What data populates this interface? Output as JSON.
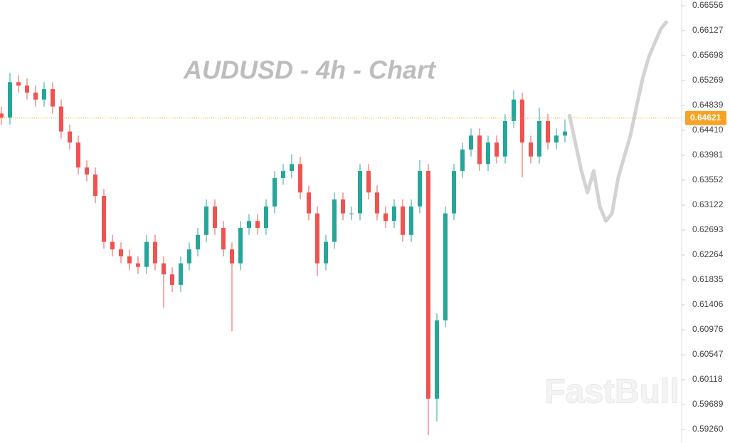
{
  "chart_data": {
    "type": "candlestick",
    "title": "AUDUSD - 4h - Chart",
    "watermark": "FastBull",
    "up_color": "#26a69a",
    "down_color": "#ef5350",
    "open": [
      0.647,
      0.6463,
      0.6524,
      0.6518,
      0.6506,
      0.6494,
      0.6512,
      0.6482,
      0.6439,
      0.642,
      0.6377,
      0.6365,
      0.6328,
      0.6249,
      0.6236,
      0.6224,
      0.6212,
      0.6206,
      0.6249,
      0.6212,
      0.6193,
      0.6175,
      0.6212,
      0.6236,
      0.6261,
      0.631,
      0.6273,
      0.6236,
      0.6212,
      0.6273,
      0.6285,
      0.6273,
      0.631,
      0.6359,
      0.6371,
      0.6383,
      0.6334,
      0.6298,
      0.6212,
      0.6249,
      0.6322,
      0.6298,
      0.6298,
      0.6371,
      0.6334,
      0.6298,
      0.6285,
      0.631,
      0.6261,
      0.631,
      0.6371,
      0.5979,
      0.6114,
      0.6298,
      0.6371,
      0.6408,
      0.6432,
      0.6383,
      0.642,
      0.6396,
      0.6457,
      0.6494,
      0.642,
      0.6396,
      0.6457,
      0.642,
      0.6432
    ],
    "high": [
      0.6482,
      0.654,
      0.6536,
      0.653,
      0.6518,
      0.6524,
      0.6524,
      0.6494,
      0.6451,
      0.6432,
      0.6389,
      0.6377,
      0.634,
      0.6261,
      0.6248,
      0.6236,
      0.6224,
      0.6261,
      0.6261,
      0.6224,
      0.6205,
      0.6224,
      0.6248,
      0.6273,
      0.6322,
      0.6322,
      0.6285,
      0.6248,
      0.6285,
      0.6297,
      0.6297,
      0.6322,
      0.6371,
      0.6383,
      0.64,
      0.6395,
      0.6346,
      0.631,
      0.6261,
      0.6334,
      0.6334,
      0.631,
      0.6383,
      0.6383,
      0.6346,
      0.631,
      0.6322,
      0.6322,
      0.6322,
      0.639,
      0.6383,
      0.6126,
      0.631,
      0.6383,
      0.642,
      0.6444,
      0.6444,
      0.6432,
      0.6432,
      0.6469,
      0.651,
      0.6506,
      0.6432,
      0.648,
      0.6469,
      0.6444,
      0.646
    ],
    "low": [
      0.6451,
      0.6451,
      0.6506,
      0.6494,
      0.6482,
      0.6482,
      0.647,
      0.6427,
      0.6408,
      0.6365,
      0.6353,
      0.6316,
      0.6237,
      0.6224,
      0.6212,
      0.62,
      0.6194,
      0.6194,
      0.62,
      0.6135,
      0.6163,
      0.6163,
      0.62,
      0.6224,
      0.6249,
      0.6261,
      0.6224,
      0.6095,
      0.62,
      0.6261,
      0.6261,
      0.6261,
      0.6298,
      0.6347,
      0.6359,
      0.6322,
      0.6286,
      0.619,
      0.62,
      0.6237,
      0.6286,
      0.6286,
      0.6286,
      0.6322,
      0.6286,
      0.6273,
      0.6273,
      0.6249,
      0.6249,
      0.6298,
      0.5916,
      0.594,
      0.6102,
      0.6286,
      0.6359,
      0.6396,
      0.6371,
      0.6371,
      0.6384,
      0.6384,
      0.6445,
      0.636,
      0.6384,
      0.6384,
      0.6408,
      0.6408,
      0.642
    ],
    "close": [
      0.6463,
      0.6524,
      0.6518,
      0.6506,
      0.6494,
      0.6512,
      0.6482,
      0.6439,
      0.642,
      0.6377,
      0.6365,
      0.6328,
      0.6249,
      0.6236,
      0.6224,
      0.6212,
      0.6206,
      0.6249,
      0.6212,
      0.6193,
      0.6175,
      0.6212,
      0.6236,
      0.6261,
      0.631,
      0.6273,
      0.6236,
      0.6212,
      0.6273,
      0.6285,
      0.6273,
      0.631,
      0.6359,
      0.6371,
      0.6383,
      0.6334,
      0.6298,
      0.6212,
      0.6249,
      0.6322,
      0.6298,
      0.6298,
      0.6371,
      0.6334,
      0.6298,
      0.6285,
      0.631,
      0.6261,
      0.631,
      0.6371,
      0.5979,
      0.6114,
      0.6298,
      0.6371,
      0.6408,
      0.6432,
      0.6383,
      0.642,
      0.6396,
      0.6457,
      0.6494,
      0.642,
      0.6396,
      0.6457,
      0.642,
      0.6432,
      0.6439
    ],
    "forecast": {
      "color": "#d3d3d3",
      "values": [
        0.6469,
        0.642,
        0.6371,
        0.6334,
        0.6371,
        0.631,
        0.6285,
        0.6298,
        0.6359,
        0.6396,
        0.6432,
        0.6482,
        0.653,
        0.6567,
        0.6592,
        0.6616,
        0.6629
      ]
    },
    "last_price": 0.64621,
    "last_price_color": "#f7a325",
    "ylim": [
      0.59027,
      0.66654
    ],
    "yticks": [
      0.66556,
      0.66127,
      0.65698,
      0.65269,
      0.64839,
      {
        "value": 0.6441,
        "label": "0.64410"
      },
      0.63981,
      0.63552,
      0.63122,
      0.62693,
      0.62264,
      0.61835,
      0.61406,
      0.60976,
      0.60547,
      0.60118,
      0.59689,
      {
        "value": 0.5926,
        "label": "0.59260"
      }
    ]
  }
}
